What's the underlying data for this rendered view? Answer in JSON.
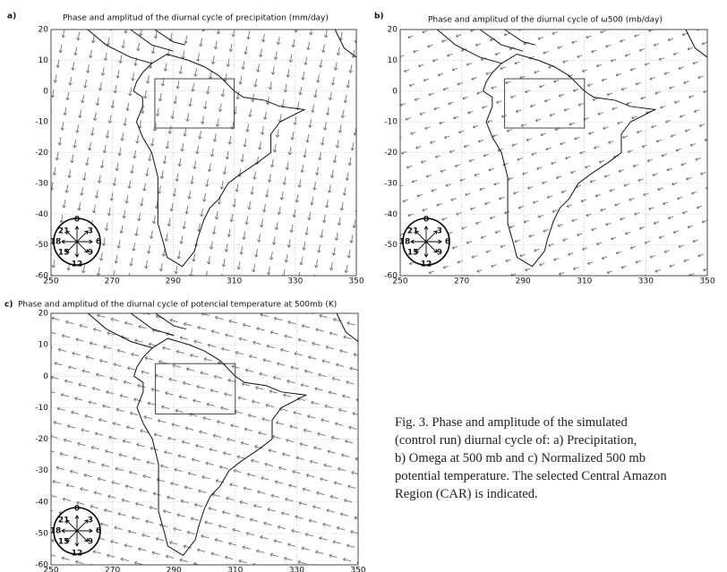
{
  "panels": [
    {
      "label": "a)",
      "title": "Phase and amplitud of the diurnal cycle of precipitation (mm/day)",
      "xlim": [
        250,
        350
      ],
      "ylim": [
        -60,
        20
      ],
      "xticks": [
        250,
        270,
        290,
        310,
        330,
        350
      ],
      "yticks": [
        20,
        10,
        0,
        -10,
        -20,
        -30,
        -40,
        -50,
        -60
      ]
    },
    {
      "label": "b)",
      "title": "Phase and amplitud of the diurnal cycle of  ω500 (mb/day)",
      "xlim": [
        250,
        350
      ],
      "ylim": [
        -60,
        20
      ],
      "xticks": [
        250,
        270,
        290,
        310,
        330,
        350
      ],
      "yticks": [
        20,
        10,
        0,
        -10,
        -20,
        -30,
        -40,
        -50,
        -60
      ]
    },
    {
      "label": "c)",
      "title": "Phase and amplitud of the diurnal cycle of potencial temperature at 500mb (K)",
      "xlim": [
        250,
        350
      ],
      "ylim": [
        -60,
        20
      ],
      "xticks": [
        250,
        270,
        290,
        310,
        330,
        350
      ],
      "yticks": [
        20,
        10,
        0,
        -10,
        -20,
        -30,
        -40,
        -50,
        -60
      ]
    }
  ],
  "clock_labels": [
    "0",
    "3",
    "6",
    "9",
    "12",
    "15",
    "18",
    "21"
  ],
  "caption": [
    "Fig. 3. Phase and amplitude of the simulated",
    "(control run) diurnal cycle of: a) Precipitation,",
    "b) Omega at 500 mb and c) Normalized 500 mb",
    "potential temperature. The selected Central Amazon",
    "Region (CAR) is indicated."
  ]
}
